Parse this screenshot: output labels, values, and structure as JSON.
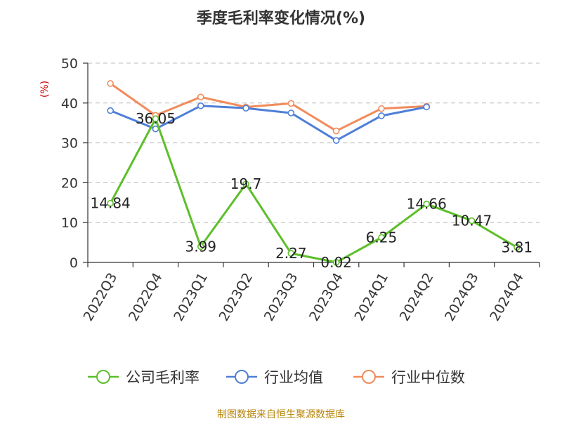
{
  "chart_data": {
    "type": "line",
    "title": "季度毛利率变化情况(%)",
    "ylabel": "(%)",
    "xlabel": "",
    "categories": [
      "2022Q3",
      "2022Q4",
      "2023Q1",
      "2023Q2",
      "2023Q3",
      "2023Q4",
      "2024Q1",
      "2024Q2",
      "2024Q3",
      "2024Q4"
    ],
    "ylim": [
      0,
      50
    ],
    "yticks": [
      0,
      10,
      20,
      30,
      40,
      50
    ],
    "grid": true,
    "legend_position": "bottom",
    "series": [
      {
        "name": "公司毛利率",
        "color": "#5cbf2a",
        "values": [
          14.84,
          36.05,
          3.99,
          19.7,
          2.27,
          0.02,
          6.25,
          14.66,
          10.47,
          3.81
        ],
        "labels": [
          "14.84",
          "36.05",
          "3.99",
          "19.7",
          "2.27",
          "0.02",
          "6.25",
          "14.66",
          "10.47",
          "3.81"
        ]
      },
      {
        "name": "行业均值",
        "color": "#4e7fd8",
        "values": [
          38.1,
          33.5,
          39.3,
          38.7,
          37.5,
          30.6,
          36.8,
          39.0,
          null,
          null
        ]
      },
      {
        "name": "行业中位数",
        "color": "#f28b5c",
        "values": [
          44.9,
          36.9,
          41.5,
          39.0,
          39.9,
          33.0,
          38.6,
          39.2,
          null,
          null
        ]
      }
    ]
  },
  "source": "制图数据来自恒生聚源数据库"
}
